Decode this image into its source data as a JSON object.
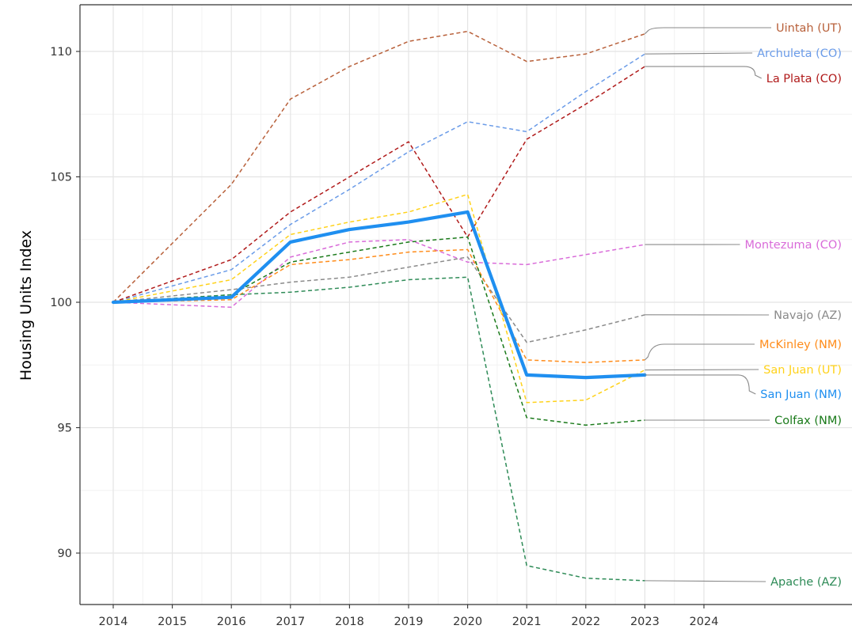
{
  "chart_data": {
    "type": "line",
    "title": "",
    "xlabel": "",
    "ylabel": "Housing Units Index",
    "xlim": [
      2014,
      2024
    ],
    "ylim": [
      88.7,
      111.8
    ],
    "x_ticks": [
      2014,
      2015,
      2016,
      2017,
      2018,
      2019,
      2020,
      2021,
      2022,
      2023,
      2024
    ],
    "y_ticks": [
      90,
      95,
      100,
      105,
      110
    ],
    "grid": true,
    "legend": "direct labels at right",
    "x": [
      2014,
      2016,
      2017,
      2018,
      2019,
      2020,
      2021,
      2022,
      2023
    ],
    "series": [
      {
        "name": "Uintah (UT)",
        "color": "#B8603A",
        "style": "dashed",
        "values": [
          100.0,
          104.7,
          108.1,
          109.4,
          110.4,
          110.8,
          109.6,
          109.9,
          110.7
        ]
      },
      {
        "name": "Archuleta (CO)",
        "color": "#6A9BE8",
        "style": "dashed",
        "values": [
          100.0,
          101.3,
          103.1,
          104.5,
          106.0,
          107.2,
          106.8,
          108.4,
          109.9
        ]
      },
      {
        "name": "La Plata (CO)",
        "color": "#B01A1A",
        "style": "dashed",
        "values": [
          100.0,
          101.7,
          103.6,
          105.0,
          106.4,
          102.6,
          106.5,
          107.9,
          109.4
        ]
      },
      {
        "name": "Montezuma (CO)",
        "color": "#D96BD9",
        "style": "dashed",
        "values": [
          100.0,
          99.8,
          101.8,
          102.4,
          102.5,
          101.6,
          101.5,
          101.9,
          102.3
        ]
      },
      {
        "name": "Navajo (AZ)",
        "color": "#8A8A8A",
        "style": "dashed",
        "values": [
          100.0,
          100.5,
          100.8,
          101.0,
          101.4,
          101.8,
          98.4,
          98.9,
          99.5
        ]
      },
      {
        "name": "McKinley (NM)",
        "color": "#FF8C1A",
        "style": "dashed",
        "values": [
          100.0,
          100.1,
          101.5,
          101.7,
          102.0,
          102.1,
          97.7,
          97.6,
          97.7
        ]
      },
      {
        "name": "San Juan (UT)",
        "color": "#FFD21A",
        "style": "dashed",
        "values": [
          100.0,
          100.9,
          102.7,
          103.2,
          103.6,
          104.3,
          96.0,
          96.1,
          97.3
        ]
      },
      {
        "name": "San Juan (NM)",
        "color": "#1F8FF0",
        "style": "solid",
        "values": [
          100.0,
          100.2,
          102.4,
          102.9,
          103.2,
          103.6,
          97.1,
          97.0,
          97.1
        ]
      },
      {
        "name": "Colfax (NM)",
        "color": "#1A7A1A",
        "style": "dashed",
        "values": [
          100.0,
          100.3,
          101.6,
          102.0,
          102.4,
          102.6,
          95.4,
          95.1,
          95.3
        ]
      },
      {
        "name": "Apache (AZ)",
        "color": "#2E8B57",
        "style": "dashed",
        "values": [
          100.0,
          100.3,
          100.4,
          100.6,
          100.9,
          101.0,
          89.5,
          89.0,
          88.9
        ]
      }
    ]
  }
}
